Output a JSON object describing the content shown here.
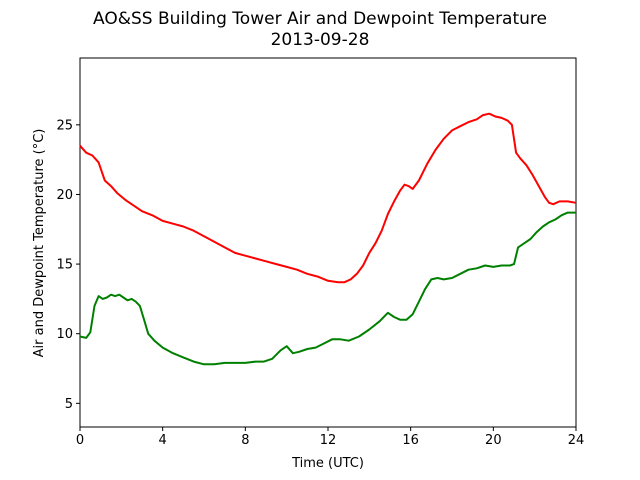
{
  "chart_data": {
    "type": "line",
    "title": "AO&SS Building Tower Air and Dewpoint Temperature",
    "subtitle": "2013-09-28",
    "xlabel": "Time (UTC)",
    "ylabel": "Air and Dewpoint Temperature (°C)",
    "xlim": [
      0,
      24
    ],
    "ylim": [
      3.3,
      29.8
    ],
    "xticks": [
      0,
      4,
      8,
      12,
      16,
      20,
      24
    ],
    "yticks": [
      5,
      10,
      15,
      20,
      25
    ],
    "grid": false,
    "series": [
      {
        "color": "#ff0000",
        "x": [
          0,
          0.3,
          0.6,
          0.9,
          1.2,
          1.5,
          1.8,
          2.2,
          2.6,
          3.0,
          3.5,
          4.0,
          4.5,
          5.0,
          5.5,
          6.0,
          6.5,
          7.0,
          7.5,
          8.0,
          8.5,
          9.0,
          9.5,
          10.0,
          10.5,
          11.0,
          11.5,
          12.0,
          12.5,
          12.8,
          13.1,
          13.4,
          13.7,
          14.0,
          14.3,
          14.6,
          14.9,
          15.2,
          15.5,
          15.7,
          15.9,
          16.1,
          16.4,
          16.8,
          17.2,
          17.6,
          18.0,
          18.4,
          18.8,
          19.2,
          19.5,
          19.8,
          20.1,
          20.4,
          20.7,
          20.9,
          21.0,
          21.1,
          21.3,
          21.6,
          21.9,
          22.2,
          22.5,
          22.7,
          22.9,
          23.2,
          23.6,
          24.0
        ],
        "y": [
          23.5,
          23.0,
          22.8,
          22.3,
          21.0,
          20.6,
          20.1,
          19.6,
          19.2,
          18.8,
          18.5,
          18.1,
          17.9,
          17.7,
          17.4,
          17.0,
          16.6,
          16.2,
          15.8,
          15.6,
          15.4,
          15.2,
          15.0,
          14.8,
          14.6,
          14.3,
          14.1,
          13.8,
          13.7,
          13.7,
          13.9,
          14.3,
          14.9,
          15.8,
          16.5,
          17.4,
          18.6,
          19.5,
          20.3,
          20.7,
          20.6,
          20.4,
          21.0,
          22.2,
          23.2,
          24.0,
          24.6,
          24.9,
          25.2,
          25.4,
          25.7,
          25.8,
          25.6,
          25.5,
          25.3,
          25.0,
          24.0,
          23.0,
          22.6,
          22.1,
          21.4,
          20.6,
          19.8,
          19.4,
          19.3,
          19.5,
          19.5,
          19.4
        ]
      },
      {
        "color": "#008000",
        "x": [
          0,
          0.3,
          0.5,
          0.7,
          0.9,
          1.1,
          1.3,
          1.5,
          1.7,
          1.9,
          2.1,
          2.3,
          2.5,
          2.7,
          2.9,
          3.1,
          3.3,
          3.6,
          4.0,
          4.5,
          5.0,
          5.5,
          6.0,
          6.5,
          7.0,
          7.5,
          8.0,
          8.5,
          8.9,
          9.3,
          9.7,
          10.0,
          10.3,
          10.6,
          11.0,
          11.4,
          11.8,
          12.2,
          12.6,
          13.0,
          13.5,
          14.0,
          14.5,
          14.9,
          15.2,
          15.5,
          15.8,
          16.1,
          16.4,
          16.7,
          17.0,
          17.3,
          17.6,
          18.0,
          18.4,
          18.8,
          19.2,
          19.6,
          20.0,
          20.4,
          20.8,
          21.0,
          21.2,
          21.5,
          21.8,
          22.1,
          22.4,
          22.7,
          23.0,
          23.3,
          23.6,
          24.0
        ],
        "y": [
          9.8,
          9.7,
          10.1,
          12.0,
          12.7,
          12.5,
          12.6,
          12.8,
          12.7,
          12.8,
          12.6,
          12.4,
          12.5,
          12.3,
          12.0,
          11.0,
          10.0,
          9.5,
          9.0,
          8.6,
          8.3,
          8.0,
          7.8,
          7.8,
          7.9,
          7.9,
          7.9,
          8.0,
          8.0,
          8.2,
          8.8,
          9.1,
          8.6,
          8.7,
          8.9,
          9.0,
          9.3,
          9.6,
          9.6,
          9.5,
          9.8,
          10.3,
          10.9,
          11.5,
          11.2,
          11.0,
          11.0,
          11.4,
          12.3,
          13.2,
          13.9,
          14.0,
          13.9,
          14.0,
          14.3,
          14.6,
          14.7,
          14.9,
          14.8,
          14.9,
          14.9,
          15.0,
          16.2,
          16.5,
          16.8,
          17.3,
          17.7,
          18.0,
          18.2,
          18.5,
          18.7,
          18.7
        ]
      }
    ]
  }
}
